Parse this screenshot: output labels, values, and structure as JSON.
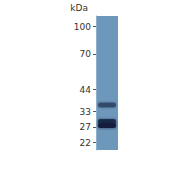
{
  "chart_data": {
    "type": "blot",
    "y_label": "kDa",
    "log": "y",
    "ylim": [
      20,
      115
    ],
    "yticks": [
      22,
      27,
      33,
      44,
      70,
      100
    ],
    "bands": [
      36,
      29,
      27.5
    ],
    "intensities": [
      0.55,
      0.8,
      1.0
    ],
    "color": "#6e98bb",
    "tick_labels": "y",
    "grid": false
  }
}
